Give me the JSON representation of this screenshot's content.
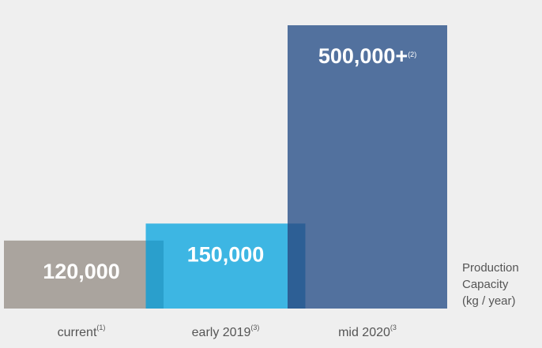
{
  "chart_data": {
    "type": "bar",
    "categories": [
      "current",
      "early 2019",
      "mid 2020"
    ],
    "category_footnotes": [
      "(1)",
      "(3)",
      "(3"
    ],
    "values": [
      120000,
      150000,
      500000
    ],
    "value_labels": [
      "120,000",
      "150,000",
      "500,000+"
    ],
    "value_label_footnotes": [
      null,
      null,
      "(2)"
    ],
    "colors": [
      "#aaa49e",
      "#3db6e3",
      "#52719e"
    ],
    "overlap_colors": [
      "#2a9fcc",
      "#2d5f95"
    ],
    "ylabel": [
      "Production",
      "Capacity",
      "(kg / year)"
    ]
  }
}
